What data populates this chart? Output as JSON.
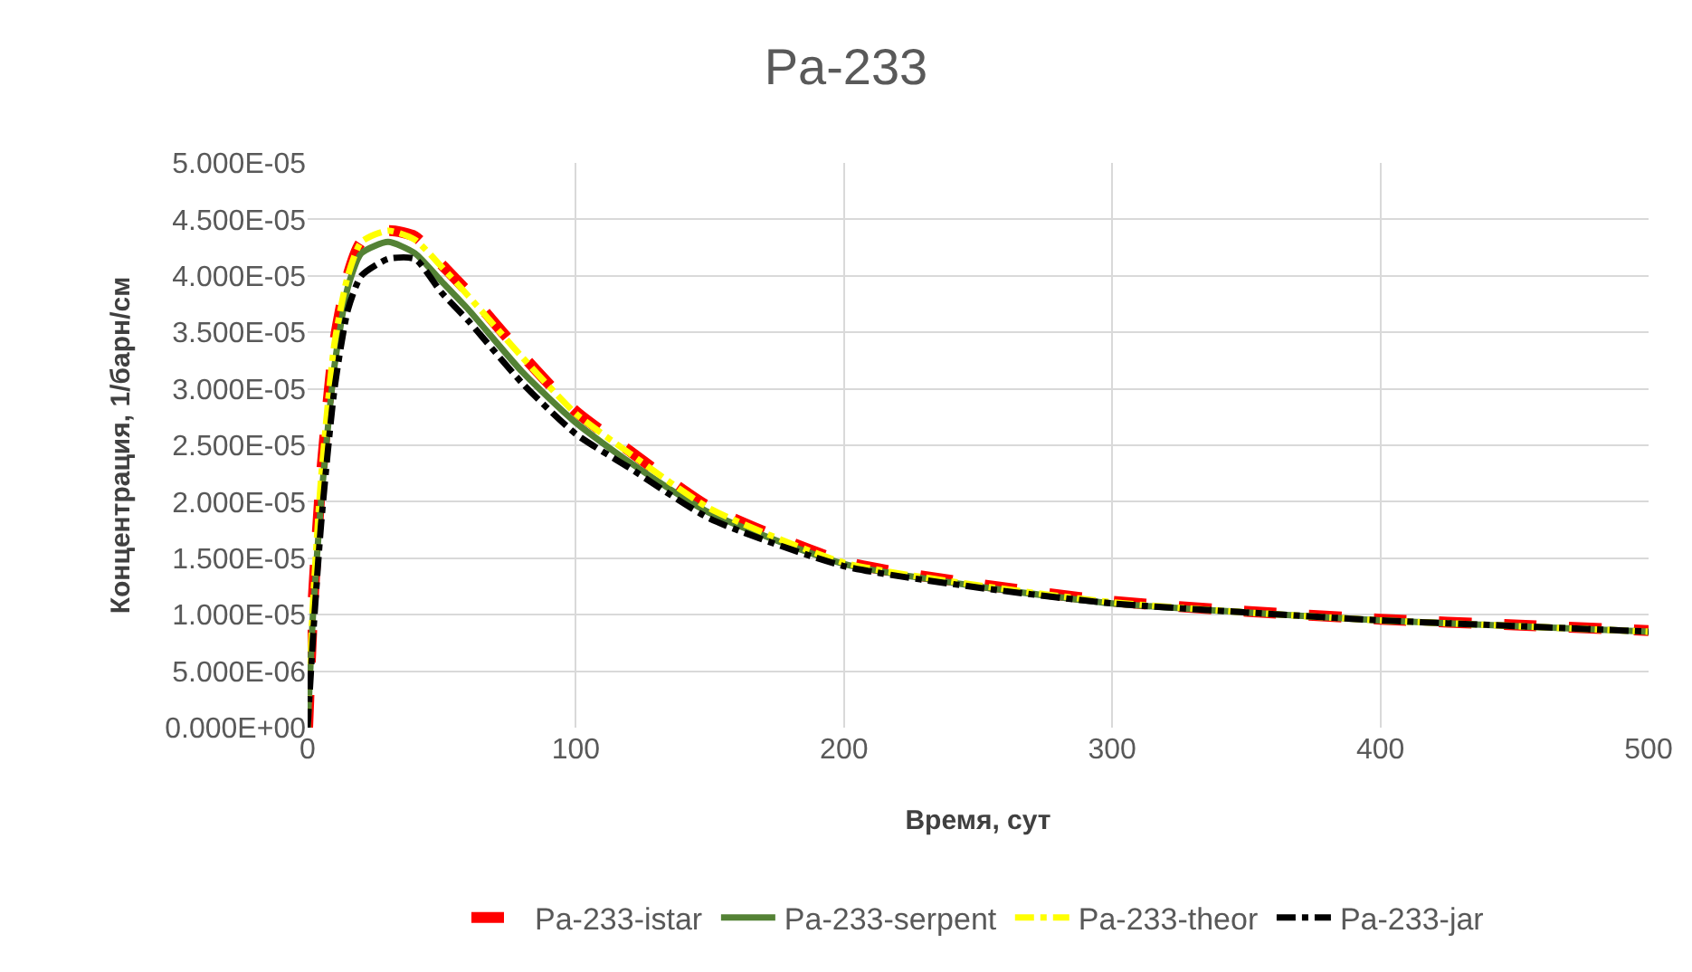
{
  "chart_data": {
    "type": "line",
    "title": "Pa-233",
    "xlabel": "Время, сут",
    "ylabel": "Концентрация, 1/барн/см",
    "xlim": [
      0,
      500
    ],
    "xticks": [
      0,
      100,
      200,
      300,
      400,
      500
    ],
    "ylim": [
      0,
      5e-05
    ],
    "yticks": [
      {
        "value": 0,
        "label": "0.000E+00"
      },
      {
        "value": 5e-06,
        "label": "5.000E-06"
      },
      {
        "value": 1e-05,
        "label": "1.000E-05"
      },
      {
        "value": 1.5e-05,
        "label": "1.500E-05"
      },
      {
        "value": 2e-05,
        "label": "2.000E-05"
      },
      {
        "value": 2.5e-05,
        "label": "2.500E-05"
      },
      {
        "value": 3e-05,
        "label": "3.000E-05"
      },
      {
        "value": 3.5e-05,
        "label": "3.500E-05"
      },
      {
        "value": 4e-05,
        "label": "4.000E-05"
      },
      {
        "value": 4.5e-05,
        "label": "4.500E-05"
      },
      {
        "value": 5e-05,
        "label": "5.000E-05"
      }
    ],
    "grid": true,
    "legend": "bottom",
    "x": [
      0,
      2,
      5,
      10,
      15,
      20,
      30,
      40,
      50,
      60,
      80,
      100,
      120,
      150,
      200,
      250,
      300,
      350,
      400,
      450,
      500
    ],
    "series": [
      {
        "name": "Pa-233-istar",
        "color": "#ff0000",
        "line_style": "dashed",
        "values": [
          0,
          1.1e-05,
          2.2e-05,
          3.4e-05,
          4e-05,
          4.3e-05,
          4.4e-05,
          4.35e-05,
          4.1e-05,
          3.85e-05,
          3.3e-05,
          2.8e-05,
          2.45e-05,
          1.95e-05,
          1.47e-05,
          1.27e-05,
          1.12e-05,
          1.03e-05,
          9.6e-06,
          9.1e-06,
          8.6e-06
        ]
      },
      {
        "name": "Pa-233-serpent",
        "color": "#548235",
        "line_style": "solid",
        "values": [
          0,
          1e-05,
          2e-05,
          3.2e-05,
          3.9e-05,
          4.2e-05,
          4.3e-05,
          4.2e-05,
          3.95e-05,
          3.7e-05,
          3.15e-05,
          2.7e-05,
          2.35e-05,
          1.9e-05,
          1.45e-05,
          1.25e-05,
          1.1e-05,
          1.02e-05,
          9.5e-06,
          9e-06,
          8.5e-06
        ]
      },
      {
        "name": "Pa-233-theor",
        "color": "#ffff00",
        "line_style": "dashdot",
        "values": [
          0,
          1.1e-05,
          2.2e-05,
          3.4e-05,
          4e-05,
          4.3e-05,
          4.4e-05,
          4.32e-05,
          4.08e-05,
          3.82e-05,
          3.28e-05,
          2.78e-05,
          2.43e-05,
          1.94e-05,
          1.46e-05,
          1.26e-05,
          1.11e-05,
          1.02e-05,
          9.5e-06,
          9e-06,
          8.5e-06
        ]
      },
      {
        "name": "Pa-233-jar",
        "color": "#000000",
        "line_style": "dashdot",
        "values": [
          0,
          8e-06,
          1.8e-05,
          3e-05,
          3.7e-05,
          4e-05,
          4.15e-05,
          4.15e-05,
          3.85e-05,
          3.6e-05,
          3.05e-05,
          2.6e-05,
          2.3e-05,
          1.85e-05,
          1.43e-05,
          1.24e-05,
          1.1e-05,
          1.02e-05,
          9.5e-06,
          9e-06,
          8.5e-06
        ]
      }
    ]
  }
}
